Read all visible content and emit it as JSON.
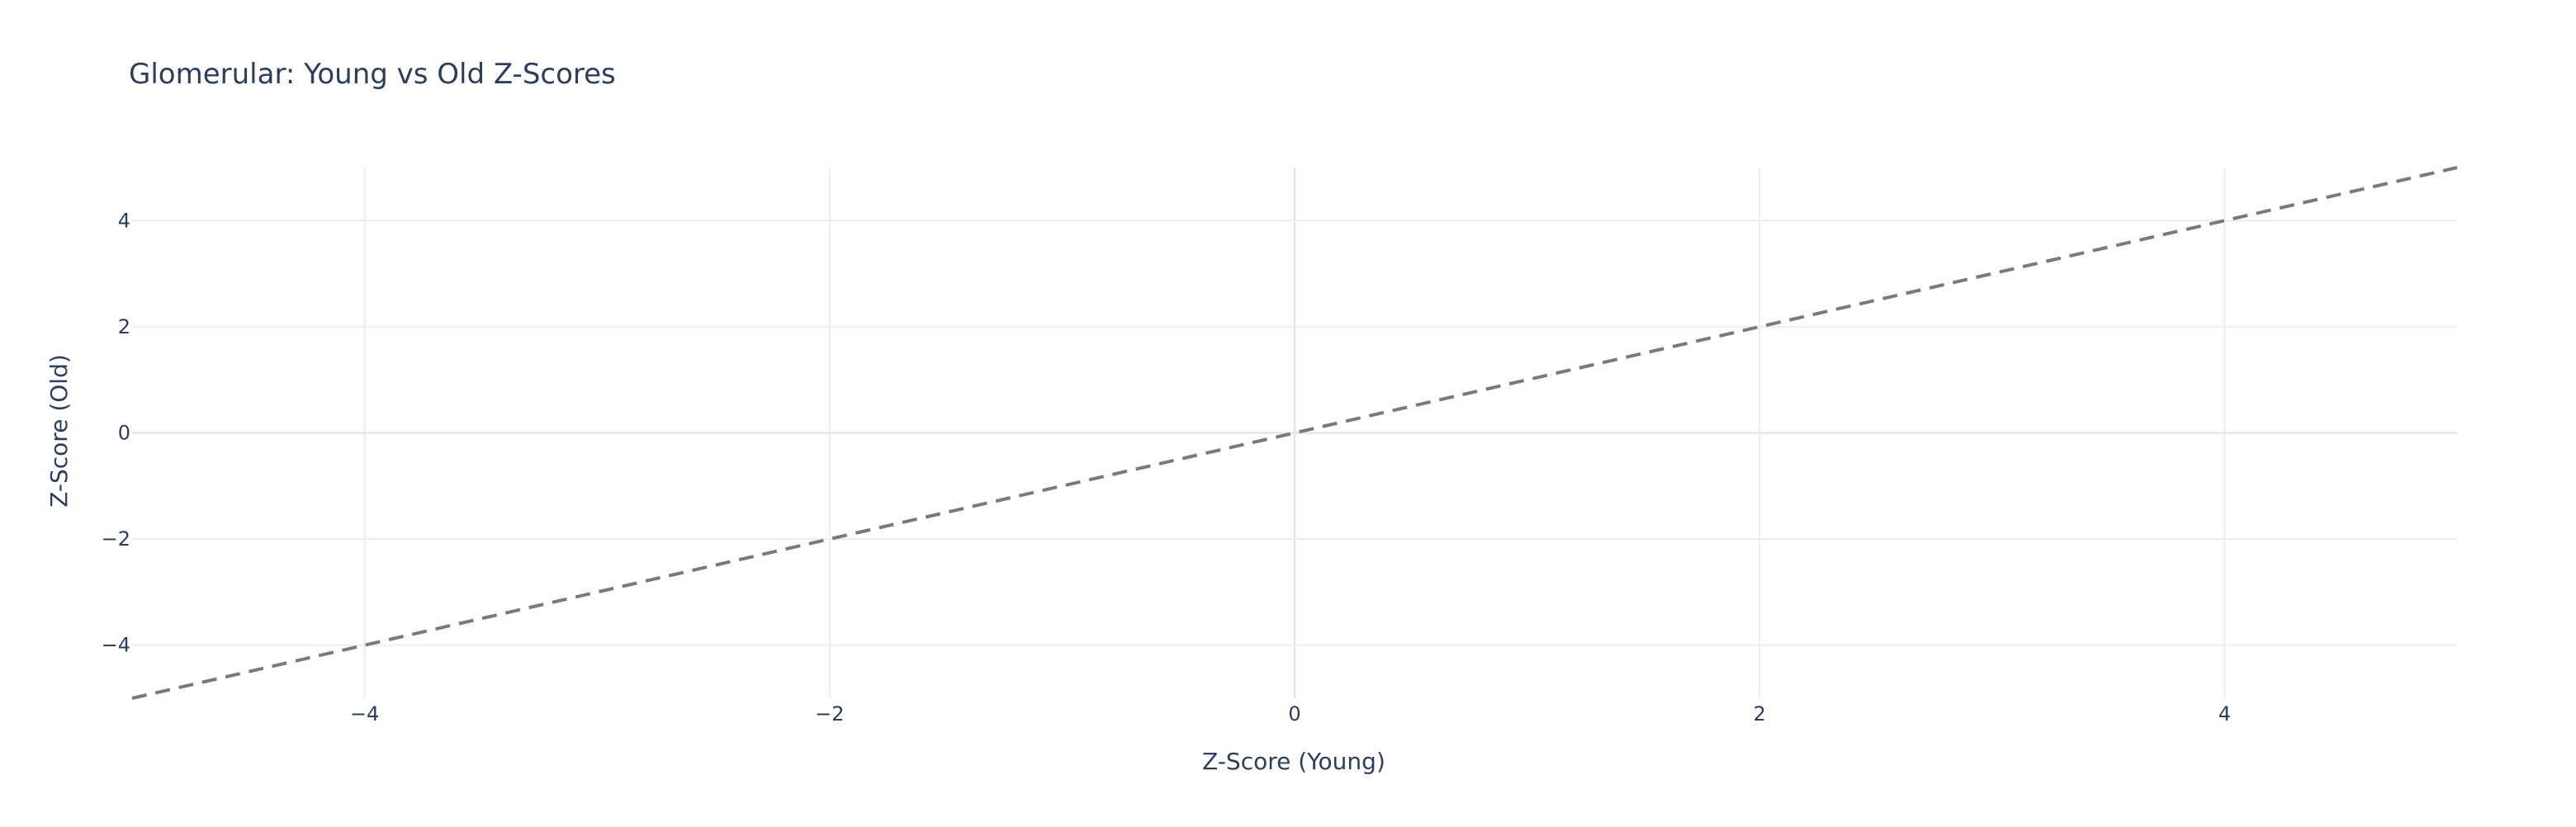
{
  "chart_data": {
    "type": "line",
    "title": "Glomerular: Young vs Old Z-Scores",
    "xlabel": "Z-Score (Young)",
    "ylabel": "Z-Score (Old)",
    "xlim": [
      -5,
      5
    ],
    "ylim": [
      -5,
      5
    ],
    "x_ticks": [
      -4,
      -2,
      0,
      2,
      4
    ],
    "y_ticks": [
      -4,
      -2,
      0,
      2,
      4
    ],
    "x_tick_labels": [
      "−4",
      "−2",
      "0",
      "2",
      "4"
    ],
    "y_tick_labels": [
      "−4",
      "−2",
      "0",
      "2",
      "4"
    ],
    "grid": true,
    "legend": false,
    "series": [
      {
        "style": "dashed",
        "color": "#7a7a7a",
        "x": [
          -5,
          5
        ],
        "y": [
          -5,
          5
        ]
      }
    ],
    "colors": {
      "text": "#2a3f5f",
      "grid": "#ebeef2",
      "zeroline": "#e2e6ec",
      "background": "#ffffff"
    }
  }
}
